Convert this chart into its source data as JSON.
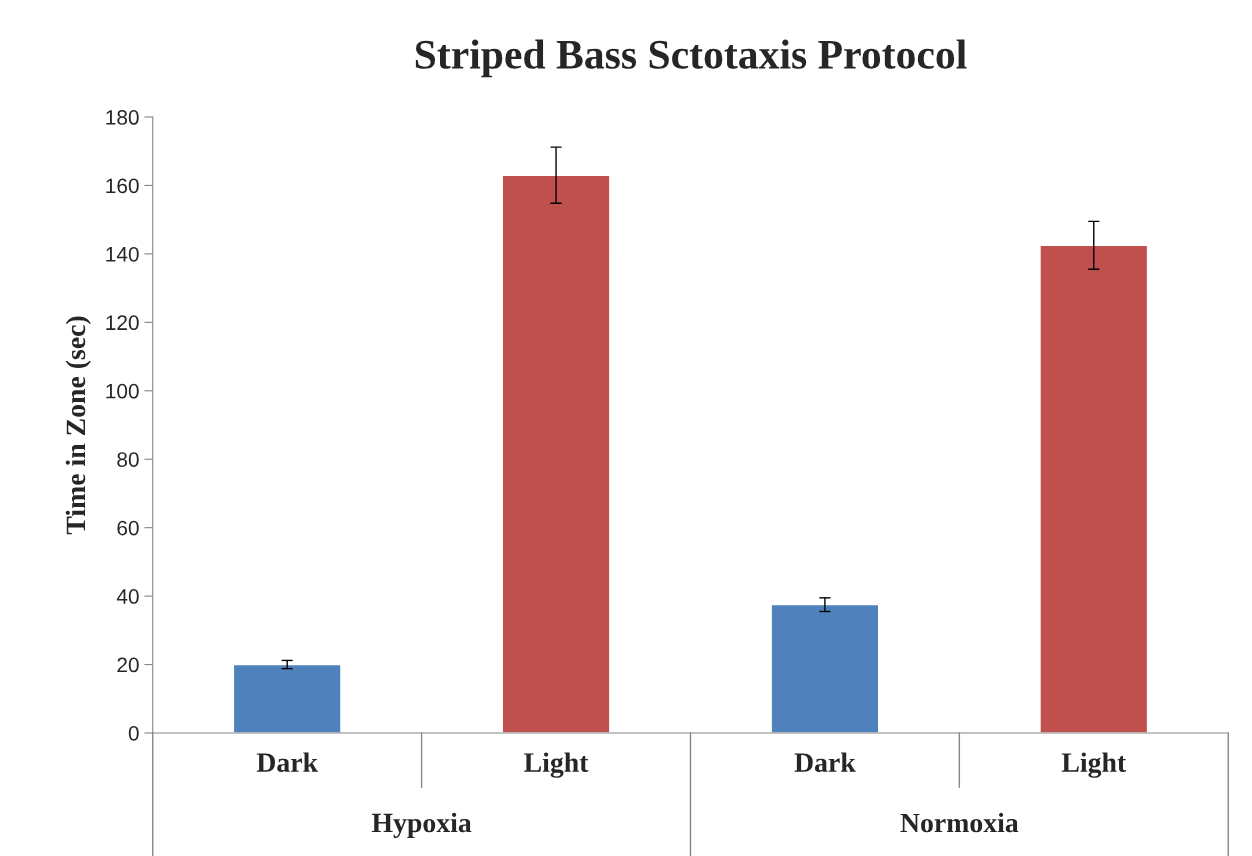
{
  "chart_data": {
    "type": "bar",
    "title": "Striped Bass Sctotaxis Protocol",
    "ylabel": "Time in Zone (sec)",
    "categories": [
      "Dark",
      "Light",
      "Dark",
      "Light"
    ],
    "values": [
      20,
      163,
      37.5,
      142.5
    ],
    "errors": [
      1.2,
      8.2,
      2,
      7
    ],
    "colors": [
      "#4f81bd",
      "#c0504d",
      "#4f81bd",
      "#c0504d"
    ],
    "annotations": [
      "Hypoxia",
      "Normoxia"
    ],
    "ylim": [
      0,
      180
    ],
    "yticks": [
      0,
      20,
      40,
      60,
      80,
      100,
      120,
      140,
      160,
      180
    ],
    "grid": false,
    "legend": false
  }
}
